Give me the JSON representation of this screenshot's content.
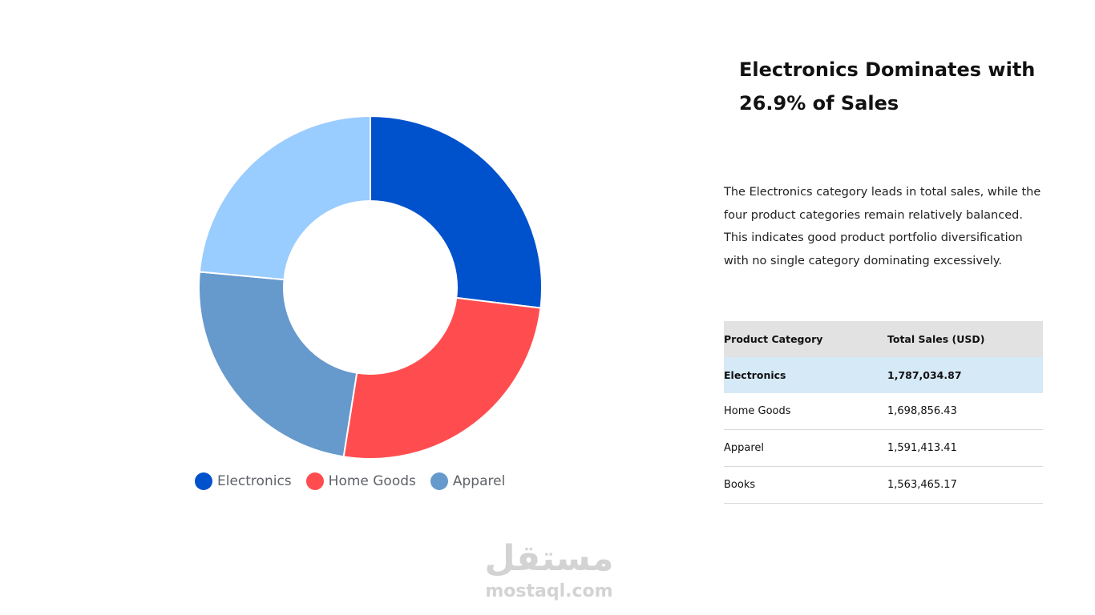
{
  "chart_data": {
    "type": "pie",
    "donut": true,
    "title": "",
    "categories": [
      "Electronics",
      "Home Goods",
      "Apparel",
      "Books"
    ],
    "values": [
      1787034.87,
      1698856.43,
      1591413.41,
      1563465.17
    ],
    "colors": [
      "#0052cc",
      "#ff4d4f",
      "#6699cc",
      "#99ccff"
    ],
    "legend_entries": [
      "Electronics",
      "Home Goods",
      "Apparel"
    ],
    "legend_position": "bottom"
  },
  "headline": {
    "line1": "Electronics Dominates with",
    "line2": "26.9% of Sales"
  },
  "description": [
    "The Electronics category leads in total sales, while the",
    "four product categories remain relatively balanced.",
    "This indicates good product portfolio diversification",
    "with no single category dominating excessively."
  ],
  "table": {
    "headers": [
      "Product Category",
      "Total Sales (USD)"
    ],
    "rows": [
      [
        "Electronics",
        "1,787,034.87"
      ],
      [
        "Home Goods",
        "1,698,856.43"
      ],
      [
        "Apparel",
        "1,591,413.41"
      ],
      [
        "Books",
        "1,563,465.17"
      ]
    ]
  },
  "watermark": {
    "arabic": "مستقل",
    "latin": "mostaql.com"
  }
}
